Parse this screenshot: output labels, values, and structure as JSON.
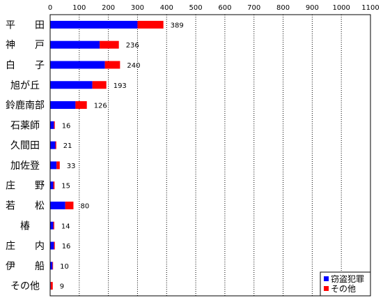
{
  "chart_data": {
    "type": "bar",
    "stacked": true,
    "orientation": "horizontal",
    "title": "",
    "xlabel": "",
    "ylabel": "",
    "xlim": [
      0,
      1100
    ],
    "x_ticks": [
      0,
      100,
      200,
      300,
      400,
      500,
      600,
      700,
      800,
      900,
      1000,
      1100
    ],
    "grid": "vertical",
    "legend_position": "bottom-right",
    "categories": [
      "平　　田",
      "神　　戸",
      "白　　子",
      "旭が丘",
      "鈴鹿南部",
      "石薬師",
      "久間田",
      "加佐登",
      "庄　　野",
      "若　　松",
      "椿",
      "庄　　内",
      "伊　　船",
      "その他"
    ],
    "series": [
      {
        "name": "窃盗犯罪",
        "color": "#0000ff",
        "values": [
          300,
          170,
          188,
          145,
          87,
          13,
          18,
          22,
          11,
          52,
          11,
          13,
          8,
          2
        ]
      },
      {
        "name": "その他",
        "color": "#ff0000",
        "values": [
          89,
          66,
          52,
          48,
          39,
          3,
          3,
          11,
          4,
          28,
          3,
          3,
          2,
          7
        ]
      }
    ],
    "totals": [
      389,
      236,
      240,
      193,
      126,
      16,
      21,
      33,
      15,
      80,
      14,
      16,
      10,
      9
    ]
  }
}
